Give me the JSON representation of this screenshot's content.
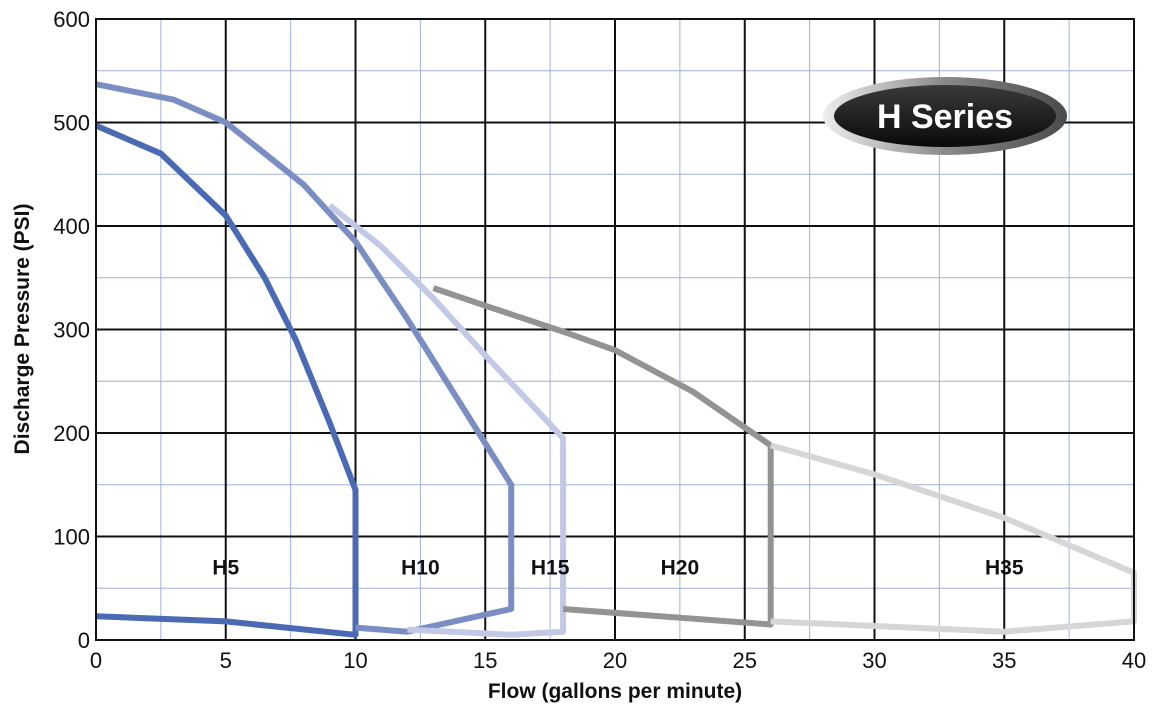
{
  "chart_data": {
    "type": "line",
    "title": "",
    "xlabel": "Flow (gallons per minute)",
    "ylabel": "Discharge Pressure (PSI)",
    "xlim": [
      0,
      40
    ],
    "ylim": [
      0,
      600
    ],
    "x_ticks": [
      0,
      5,
      10,
      15,
      20,
      25,
      30,
      35,
      40
    ],
    "y_ticks": [
      0,
      100,
      200,
      300,
      400,
      500,
      600
    ],
    "x_ticks_minor": [
      2.5,
      7.5,
      12.5,
      17.5,
      22.5,
      27.5,
      32.5,
      37.5
    ],
    "y_ticks_minor": [
      50,
      150,
      250,
      350,
      450,
      550
    ],
    "grid": true,
    "badge": "H Series",
    "series": [
      {
        "name": "H5",
        "color": "#4a6bb3",
        "label_at": [
          5,
          70
        ],
        "points": [
          [
            0,
            497
          ],
          [
            2.5,
            470
          ],
          [
            5,
            410
          ],
          [
            6.5,
            350
          ],
          [
            7.7,
            290
          ],
          [
            9,
            210
          ],
          [
            10,
            145
          ],
          [
            10,
            5
          ],
          [
            5,
            18
          ],
          [
            0,
            23
          ]
        ]
      },
      {
        "name": "H10",
        "color": "#7b8ec4",
        "label_at": [
          12.5,
          70
        ],
        "points": [
          [
            0,
            537
          ],
          [
            3,
            522
          ],
          [
            5,
            500
          ],
          [
            8,
            440
          ],
          [
            10,
            385
          ],
          [
            12,
            310
          ],
          [
            14,
            230
          ],
          [
            16,
            150
          ],
          [
            16,
            30
          ],
          [
            12,
            8
          ],
          [
            10,
            12
          ]
        ]
      },
      {
        "name": "H15",
        "color": "#c2c9e6",
        "label_at": [
          17.5,
          70
        ],
        "points": [
          [
            9,
            420
          ],
          [
            11,
            380
          ],
          [
            13,
            330
          ],
          [
            15,
            275
          ],
          [
            18,
            195
          ],
          [
            18,
            8
          ],
          [
            16,
            5
          ],
          [
            12,
            10
          ]
        ]
      },
      {
        "name": "H20",
        "color": "#939393",
        "label_at": [
          22.5,
          70
        ],
        "points": [
          [
            13,
            340
          ],
          [
            15,
            323
          ],
          [
            18,
            298
          ],
          [
            20,
            280
          ],
          [
            23,
            240
          ],
          [
            26,
            188
          ],
          [
            26,
            15
          ],
          [
            18,
            30
          ]
        ]
      },
      {
        "name": "H35",
        "color": "#d6d6d6",
        "label_at": [
          35,
          70
        ],
        "points": [
          [
            26,
            188
          ],
          [
            30,
            160
          ],
          [
            35,
            118
          ],
          [
            40,
            65
          ],
          [
            40,
            18
          ],
          [
            35,
            8
          ],
          [
            26,
            18
          ]
        ]
      }
    ]
  }
}
